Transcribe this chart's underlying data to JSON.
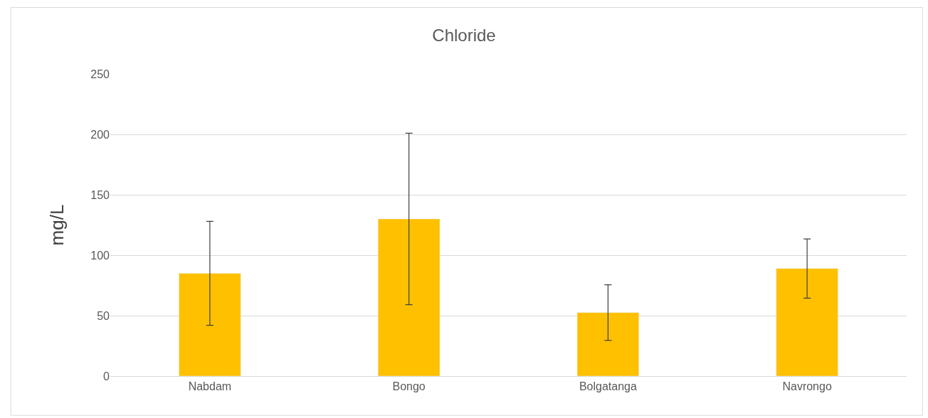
{
  "chart_data": {
    "type": "bar",
    "title": "Chloride",
    "ylabel": "mg/L",
    "categories": [
      "Nabdam",
      "Bongo",
      "Bolgatanga",
      "Navrongo"
    ],
    "series": [
      {
        "color": "#ffc000",
        "values": [
          85,
          130,
          52.5,
          89
        ],
        "errors": [
          43,
          71,
          23,
          24.5
        ]
      }
    ],
    "ylim": [
      0,
      250
    ],
    "yticks": [
      0,
      50,
      100,
      150,
      200,
      250
    ],
    "grid": "y"
  }
}
